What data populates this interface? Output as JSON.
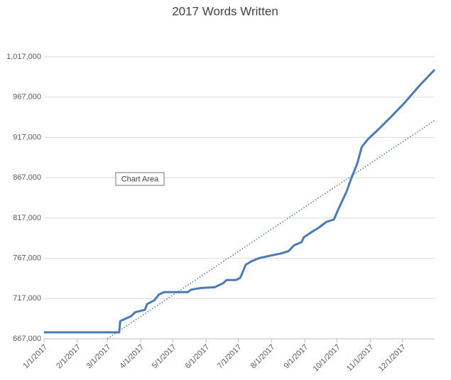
{
  "chart_data": {
    "type": "line",
    "title": "2017 Words Written",
    "tooltip": "Chart Area",
    "x": [
      "1/1/2017",
      "3/12/2017",
      "3/13/2017",
      "3/23/2017",
      "3/27/2017",
      "4/5/2017",
      "4/7/2017",
      "4/14/2017",
      "4/18/2017",
      "4/23/2017",
      "5/15/2017",
      "5/18/2017",
      "5/27/2017",
      "6/9/2017",
      "6/17/2017",
      "6/20/2017",
      "6/29/2017",
      "7/3/2017",
      "7/8/2017",
      "7/13/2017",
      "7/20/2017",
      "7/30/2017",
      "8/10/2017",
      "8/17/2017",
      "8/22/2017",
      "8/29/2017",
      "8/31/2017",
      "9/8/2017",
      "9/14/2017",
      "9/21/2017",
      "9/28/2017",
      "10/3/2017",
      "10/10/2017",
      "10/14/2017",
      "10/20/2017",
      "10/24/2017",
      "10/30/2017",
      "11/7/2017",
      "11/20/2017",
      "12/3/2017",
      "12/16/2017",
      "12/31/2017"
    ],
    "series": [
      {
        "color": "#4a7ab8",
        "values": [
          675000,
          675000,
          689000,
          695000,
          700000,
          703000,
          710000,
          715000,
          722000,
          725000,
          725000,
          728000,
          730000,
          731000,
          736000,
          740000,
          740000,
          743000,
          759000,
          763000,
          767000,
          770000,
          773000,
          776000,
          783000,
          787000,
          793000,
          800000,
          805000,
          812000,
          815000,
          830000,
          850000,
          865000,
          885000,
          905000,
          915000,
          925000,
          942000,
          960000,
          980000,
          1001000
        ]
      }
    ],
    "trendline": {
      "color": "#4a7ab8",
      "x": [
        "3/1/2017",
        "12/31/2017"
      ],
      "values": [
        667000,
        938000
      ]
    },
    "xlim": [
      "1/1/2017",
      "12/31/2017"
    ],
    "xticks": [
      "1/1/2017",
      "2/1/2017",
      "3/1/2017",
      "4/1/2017",
      "5/1/2017",
      "6/1/2017",
      "7/1/2017",
      "8/1/2017",
      "9/1/2017",
      "10/1/2017",
      "11/1/2017",
      "12/1/2017"
    ],
    "ylim": [
      667000,
      1017000
    ],
    "yticks": [
      {
        "value": 667000,
        "label": "667,000"
      },
      {
        "value": 717000,
        "label": "717,000"
      },
      {
        "value": 767000,
        "label": "767,000"
      },
      {
        "value": 817000,
        "label": "817,000"
      },
      {
        "value": 867000,
        "label": "867,000"
      },
      {
        "value": 917000,
        "label": "917,000"
      },
      {
        "value": 967000,
        "label": "967,000"
      },
      {
        "value": 1017000,
        "label": "1,017,000"
      }
    ],
    "grid": true
  }
}
